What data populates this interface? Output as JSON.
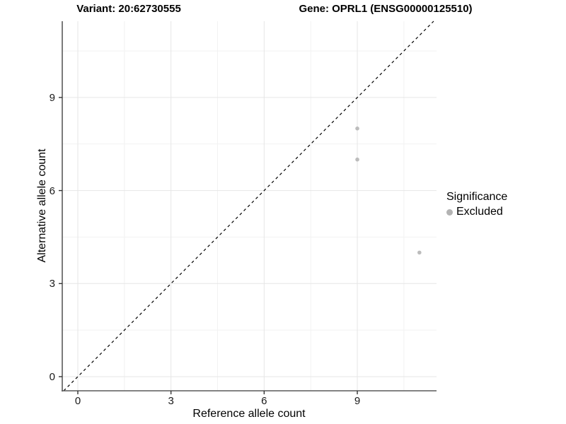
{
  "chart_data": {
    "type": "scatter",
    "title_variant": "Variant: 20:62730555",
    "title_gene": "Gene: OPRL1 (ENSG00000125510)",
    "xlabel": "Reference allele count",
    "ylabel": "Alternative allele count",
    "x_ticks": [
      0,
      3,
      6,
      9
    ],
    "y_ticks": [
      0,
      3,
      6,
      9
    ],
    "x_minor_ticks": [
      1.5,
      4.5,
      7.5,
      10.5
    ],
    "y_minor_ticks": [
      1.5,
      4.5,
      7.5,
      10.5
    ],
    "xlim": [
      -0.501,
      11.551
    ],
    "ylim": [
      -0.456,
      11.459
    ],
    "grid": "major and minor gridlines on, white background",
    "identity_line": {
      "equation": "y = x",
      "style": "dashed",
      "color": "#000000"
    },
    "series": [
      {
        "name": "Excluded",
        "color": "#bcbcbc",
        "points": [
          {
            "x": 9,
            "y": 8
          },
          {
            "x": 9,
            "y": 7
          },
          {
            "x": 11,
            "y": 4
          }
        ]
      }
    ],
    "legend": {
      "title": "Significance",
      "position": "right",
      "items": [
        {
          "label": "Excluded",
          "color": "#b3b3b3"
        }
      ]
    },
    "colors": {
      "background": "#ffffff",
      "grid_major": "#e6e6e6",
      "grid_minor": "#f2f2f2",
      "axis_line": "#5a5a5a",
      "tick_mark": "#333333",
      "text": "#000000"
    }
  }
}
